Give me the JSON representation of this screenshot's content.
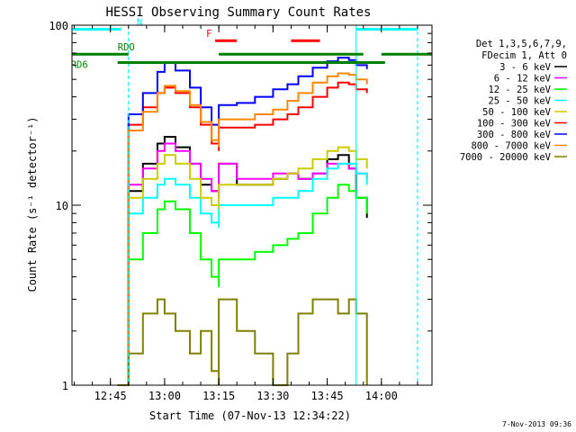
{
  "chart_data": {
    "type": "line",
    "title": "HESSI Observing Summary Count Rates",
    "xlabel": "Start Time (07-Nov-13 12:34:22)",
    "ylabel": "Count Rate (s⁻¹ detector⁻¹)",
    "y_scale": "log",
    "ylim": [
      1,
      100
    ],
    "xlim": [
      "12:34:22",
      "14:14"
    ],
    "x_ticks": [
      "12:45",
      "13:00",
      "13:15",
      "13:30",
      "13:45",
      "14:00"
    ],
    "y_ticks": [
      "1",
      "10",
      "100"
    ],
    "legend_header": [
      "Det 1,3,5,6,7,9,",
      "FDecim 1, Att 0"
    ],
    "legend_position": "right",
    "series": [
      {
        "name": "3 - 6 keV",
        "color": "#000000",
        "x": [
          "12:47",
          "12:50",
          "12:54",
          "12:58",
          "13:00",
          "13:03",
          "13:07",
          "13:10",
          "13:13",
          "13:15",
          "13:15",
          "13:20",
          "13:25",
          "13:30",
          "13:34",
          "13:37",
          "13:41",
          "13:45",
          "13:48",
          "13:51",
          "13:53",
          "13:56"
        ],
        "y": [
          1.0,
          12,
          17,
          22,
          24,
          21,
          17,
          13,
          12,
          11,
          17,
          13,
          13,
          14,
          15,
          14,
          15,
          18,
          19,
          16,
          11,
          8.5
        ]
      },
      {
        "name": "6 - 12 keV",
        "color": "#ff00ff",
        "x": [
          "12:47",
          "12:50",
          "12:54",
          "12:58",
          "13:00",
          "13:03",
          "13:07",
          "13:10",
          "13:13",
          "13:15",
          "13:15",
          "13:20",
          "13:25",
          "13:30",
          "13:34",
          "13:37",
          "13:41",
          "13:45",
          "13:48",
          "13:51",
          "13:53",
          "13:56"
        ],
        "y": [
          1.0,
          13,
          16,
          20,
          22,
          20,
          17,
          14,
          12,
          11,
          17,
          14,
          14,
          15,
          15,
          14,
          15,
          17,
          17,
          16,
          15,
          14
        ]
      },
      {
        "name": "12 - 25 keV",
        "color": "#00ff00",
        "x": [
          "12:47",
          "12:50",
          "12:54",
          "12:58",
          "13:00",
          "13:03",
          "13:07",
          "13:10",
          "13:13",
          "13:15",
          "13:15",
          "13:20",
          "13:25",
          "13:30",
          "13:34",
          "13:37",
          "13:41",
          "13:45",
          "13:48",
          "13:51",
          "13:53",
          "13:56"
        ],
        "y": [
          1.0,
          5,
          7,
          9.5,
          10.5,
          9.5,
          7,
          5,
          4,
          3.5,
          5,
          5,
          5.5,
          6,
          6.5,
          7,
          9,
          11,
          13,
          12,
          11,
          9
        ]
      },
      {
        "name": "25 - 50 keV",
        "color": "#00ffff",
        "x": [
          "12:47",
          "12:50",
          "12:54",
          "12:58",
          "13:00",
          "13:03",
          "13:07",
          "13:10",
          "13:13",
          "13:15",
          "13:15",
          "13:20",
          "13:25",
          "13:30",
          "13:34",
          "13:37",
          "13:41",
          "13:45",
          "13:48",
          "13:51",
          "13:53",
          "13:56"
        ],
        "y": [
          1.0,
          9,
          11,
          13,
          14,
          13,
          11,
          9,
          8,
          7.5,
          10,
          10,
          10,
          11,
          11,
          12,
          14,
          16,
          17,
          17,
          15,
          13
        ]
      },
      {
        "name": "50 - 100 keV",
        "color": "#cccc00",
        "x": [
          "12:47",
          "12:50",
          "12:54",
          "12:58",
          "13:00",
          "13:03",
          "13:07",
          "13:10",
          "13:13",
          "13:15",
          "13:15",
          "13:20",
          "13:25",
          "13:30",
          "13:34",
          "13:37",
          "13:41",
          "13:45",
          "13:48",
          "13:51",
          "13:53",
          "13:56"
        ],
        "y": [
          1.0,
          11,
          14,
          17,
          19,
          17,
          14,
          11,
          10,
          9.5,
          13,
          13,
          13,
          14,
          15,
          16,
          18,
          20,
          21,
          20,
          18,
          16
        ]
      },
      {
        "name": "100 - 300 keV",
        "color": "#ff0000",
        "x": [
          "12:47",
          "12:50",
          "12:54",
          "12:58",
          "13:00",
          "13:03",
          "13:07",
          "13:10",
          "13:13",
          "13:15",
          "13:15",
          "13:20",
          "13:25",
          "13:30",
          "13:34",
          "13:37",
          "13:41",
          "13:45",
          "13:48",
          "13:51",
          "13:53",
          "13:56"
        ],
        "y": [
          1.0,
          28,
          35,
          42,
          45,
          42,
          35,
          28,
          22,
          20,
          27,
          27,
          28,
          30,
          32,
          35,
          40,
          45,
          48,
          47,
          44,
          42
        ]
      },
      {
        "name": "300 - 800 keV",
        "color": "#0000ff",
        "x": [
          "12:47",
          "12:50",
          "12:54",
          "12:58",
          "13:00",
          "13:03",
          "13:07",
          "13:10",
          "13:13",
          "13:15",
          "13:15",
          "13:20",
          "13:25",
          "13:30",
          "13:34",
          "13:37",
          "13:41",
          "13:45",
          "13:48",
          "13:51",
          "13:53",
          "13:56"
        ],
        "y": [
          1.0,
          32,
          42,
          55,
          62,
          56,
          45,
          35,
          28,
          25,
          36,
          37,
          40,
          44,
          47,
          52,
          58,
          63,
          66,
          64,
          60,
          57
        ]
      },
      {
        "name": "800 - 7000 keV",
        "color": "#ff8800",
        "x": [
          "12:47",
          "12:50",
          "12:54",
          "12:58",
          "13:00",
          "13:03",
          "13:07",
          "13:10",
          "13:13",
          "13:15",
          "13:15",
          "13:20",
          "13:25",
          "13:30",
          "13:34",
          "13:37",
          "13:41",
          "13:45",
          "13:48",
          "13:51",
          "13:53",
          "13:56"
        ],
        "y": [
          1.0,
          26,
          33,
          42,
          46,
          43,
          36,
          29,
          23,
          21,
          30,
          30,
          32,
          34,
          38,
          42,
          48,
          52,
          54,
          53,
          50,
          47
        ]
      },
      {
        "name": "7000 - 20000 keV",
        "color": "#808000",
        "x": [
          "12:47",
          "12:50",
          "12:54",
          "12:58",
          "13:00",
          "13:03",
          "13:07",
          "13:10",
          "13:13",
          "13:15",
          "13:15",
          "13:20",
          "13:25",
          "13:30",
          "13:34",
          "13:37",
          "13:41",
          "13:45",
          "13:48",
          "13:51",
          "13:53",
          "13:56"
        ],
        "y": [
          1.0,
          1.5,
          2.5,
          3.0,
          2.5,
          2.0,
          1.5,
          2.0,
          1.2,
          1.0,
          3.0,
          2.0,
          1.5,
          1.0,
          1.5,
          2.5,
          3.0,
          3.0,
          2.5,
          3.0,
          2.5,
          1.0
        ]
      }
    ],
    "annotations": [
      {
        "label": "N",
        "color": "#00ffff",
        "segments": [
          [
            "12:34:22",
            "12:48"
          ],
          [
            "13:53",
            "14:10"
          ]
        ],
        "y": 95
      },
      {
        "label": "RDO",
        "color": "#008000",
        "segments": [
          [
            "12:34:22",
            "12:50"
          ],
          [
            "13:15",
            "13:55"
          ],
          [
            "14:00",
            "14:14"
          ]
        ],
        "y": 69
      },
      {
        "label": "RD6",
        "color": "#008000",
        "segments": [
          [
            "12:47",
            "14:01"
          ]
        ],
        "y": 62
      },
      {
        "label": "F",
        "color": "#ff0000",
        "segments": [
          [
            "13:14",
            "13:20"
          ],
          [
            "13:35",
            "13:43"
          ]
        ],
        "y": 82
      }
    ],
    "vertical_lines": [
      {
        "color": "#00ffff",
        "style": "dashed",
        "x": "12:50"
      },
      {
        "color": "#00ffff",
        "style": "solid",
        "x": "13:53"
      },
      {
        "color": "#00ffff",
        "style": "dashed",
        "x": "14:10"
      }
    ],
    "footer": "7-Nov-2013 09:36"
  }
}
